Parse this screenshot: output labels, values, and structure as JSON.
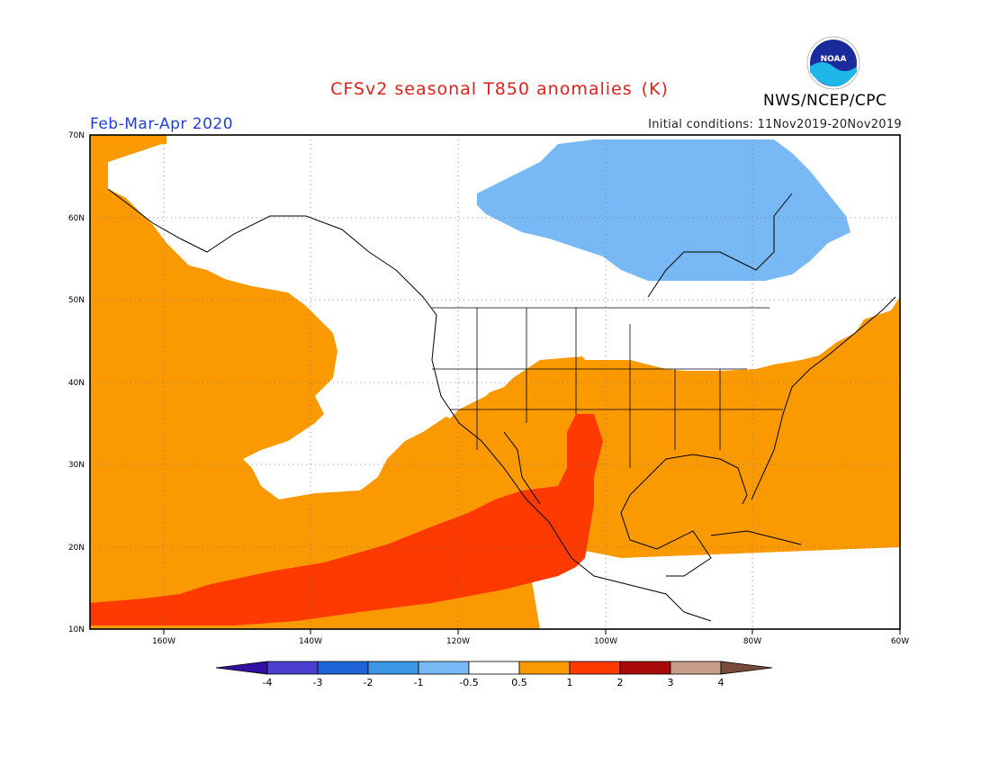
{
  "title": {
    "main": "CFSv2 seasonal T850 anomalies",
    "units": "(K)"
  },
  "period": "Feb-Mar-Apr 2020",
  "initial_conditions": "Initial conditions: 11Nov2019-20Nov2019",
  "agency": "NWS/NCEP/CPC",
  "logo_text": "NOAA",
  "axes": {
    "lat_labels": [
      "70N",
      "60N",
      "50N",
      "40N",
      "30N",
      "20N",
      "10N"
    ],
    "lon_labels": [
      "160W",
      "140W",
      "120W",
      "100W",
      "80W",
      "60W"
    ],
    "lat_range": [
      10,
      70
    ],
    "lon_range": [
      -170,
      -60
    ]
  },
  "colorbar": {
    "labels": [
      "-4",
      "-3",
      "-2",
      "-1",
      "-0.5",
      "0.5",
      "1",
      "2",
      "3",
      "4"
    ],
    "colors": [
      "#3210a0",
      "#4a3fd0",
      "#1e64d8",
      "#3c96e8",
      "#78b8f4",
      "#ffffff",
      "#fa9a00",
      "#ff3a00",
      "#a80a0a",
      "#c8a08a",
      "#7a4a3a"
    ]
  },
  "anomaly_colors": {
    "weak_cold": "#78b8f4",
    "neutral": "#ffffff",
    "weak_warm": "#fa9a00",
    "moderate_warm": "#ff3a00"
  }
}
